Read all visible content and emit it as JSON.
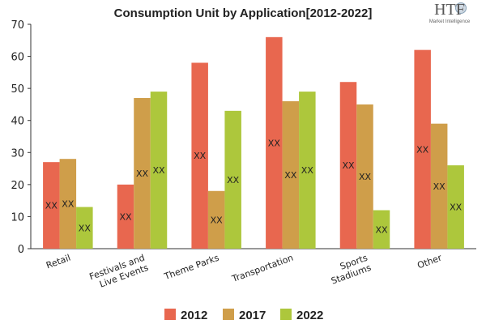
{
  "logo": {
    "text": "HTF",
    "subtitle": "Market Intelligence"
  },
  "chart_data": {
    "type": "bar",
    "title": "Consumption Unit by  Application[2012-2022]",
    "categories": [
      [
        "Retail"
      ],
      [
        "Festivals and",
        "Live Events"
      ],
      [
        "Theme Parks"
      ],
      [
        "Transportation"
      ],
      [
        "Sports",
        "Stadiums"
      ],
      [
        "Other"
      ]
    ],
    "series": [
      {
        "name": "2012",
        "color": "#e8674f",
        "values": [
          27,
          20,
          58,
          66,
          52,
          62
        ]
      },
      {
        "name": "2017",
        "color": "#cf9e4a",
        "values": [
          28,
          47,
          18,
          46,
          45,
          39
        ]
      },
      {
        "name": "2022",
        "color": "#adc73c",
        "values": [
          13,
          49,
          43,
          49,
          12,
          26
        ]
      }
    ],
    "data_label": "XX",
    "ylim": [
      0,
      70
    ],
    "yticks": [
      0,
      10,
      20,
      30,
      40,
      50,
      60,
      70
    ],
    "grid": false,
    "legend_position": "bottom"
  }
}
